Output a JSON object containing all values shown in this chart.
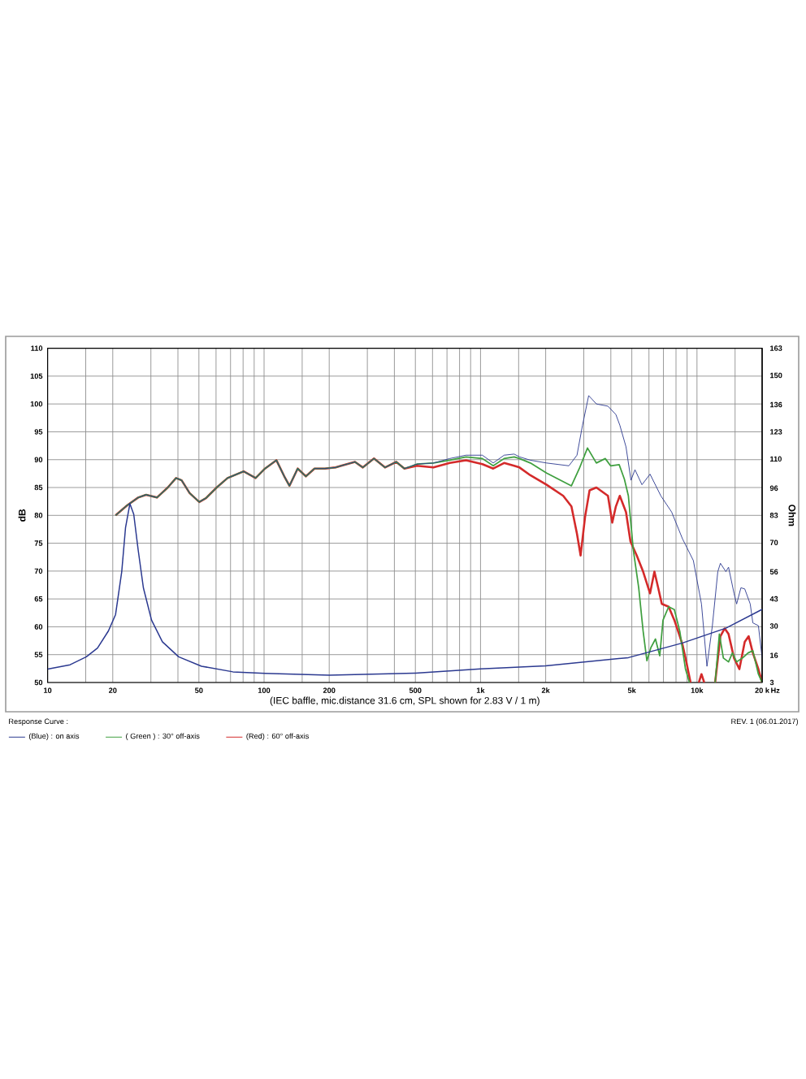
{
  "chart_data": {
    "type": "line",
    "xlabel": "(IEC baffle, mic.distance 31.6 cm, SPL shown for 2.83 V / 1 m)",
    "ylabel": "dB",
    "y2label": "Ohm",
    "legend_title": "Response Curve :",
    "annotations": [
      "REV. 1 (06.01.2017)",
      "Hz"
    ],
    "log": "x",
    "grid": true,
    "legend": "bottom",
    "xlim": [
      10,
      20000
    ],
    "ylim": [
      50,
      110
    ],
    "y2lim": [
      3,
      163
    ],
    "xticks": [
      10,
      {
        "value": 15,
        "label": null
      },
      20,
      {
        "value": 30,
        "label": null
      },
      {
        "value": 40,
        "label": null
      },
      50,
      {
        "value": 60,
        "label": null
      },
      {
        "value": 70,
        "label": null
      },
      {
        "value": 80,
        "label": null
      },
      {
        "value": 90,
        "label": null
      },
      100,
      {
        "value": 150,
        "label": null
      },
      200,
      {
        "value": 300,
        "label": null
      },
      {
        "value": 400,
        "label": null
      },
      500,
      {
        "value": 600,
        "label": null
      },
      {
        "value": 700,
        "label": null
      },
      {
        "value": 800,
        "label": null
      },
      {
        "value": 900,
        "label": null
      },
      {
        "value": 1000,
        "label": "1k"
      },
      {
        "value": 1500,
        "label": null
      },
      {
        "value": 2000,
        "label": "2k"
      },
      {
        "value": 3000,
        "label": null
      },
      {
        "value": 4000,
        "label": null
      },
      {
        "value": 5000,
        "label": "5k"
      },
      {
        "value": 6000,
        "label": null
      },
      {
        "value": 7000,
        "label": null
      },
      {
        "value": 8000,
        "label": null
      },
      {
        "value": 9000,
        "label": null
      },
      {
        "value": 10000,
        "label": "10k"
      },
      {
        "value": 15000,
        "label": null
      },
      {
        "value": 20000,
        "label": "20 k"
      }
    ],
    "yticks": [
      50,
      55,
      60,
      65,
      70,
      75,
      80,
      85,
      90,
      95,
      100,
      105,
      110
    ],
    "y2ticks": [
      3,
      16,
      30,
      43,
      56,
      70,
      83,
      96,
      110,
      123,
      136,
      150,
      163
    ],
    "series": [
      {
        "name": "(Blue) : on axis",
        "color": "#2b3990",
        "x": [
          20.6,
          23.3,
          26.2,
          28.5,
          32,
          35.9,
          39.2,
          41.6,
          45.3,
          50.2,
          53.9,
          60.4,
          67.8,
          80.5,
          91.4,
          101,
          114,
          124,
          131,
          143,
          156,
          171,
          191,
          214,
          227,
          263,
          286,
          322,
          362,
          408,
          445,
          508,
          606,
          721,
          857,
          1020,
          1145,
          1285,
          1430,
          1514,
          1700,
          2020,
          2560,
          2790,
          2960,
          3160,
          3430,
          3880,
          4220,
          4400,
          4700,
          4955,
          5170,
          5570,
          6070,
          6810,
          7640,
          8570,
          9620,
          10490,
          11120,
          11780,
          12480,
          12830,
          13600,
          13990,
          14830,
          15250,
          15960,
          16620,
          17620,
          18120,
          19220,
          20000
        ],
        "values": [
          80.0,
          81.8,
          83.2,
          83.7,
          83.2,
          85.0,
          86.7,
          86.3,
          84.0,
          82.4,
          83.1,
          85.0,
          86.7,
          87.9,
          86.7,
          88.4,
          89.9,
          87.0,
          85.3,
          88.4,
          87.0,
          88.4,
          88.4,
          88.6,
          88.9,
          89.6,
          88.6,
          90.2,
          88.6,
          89.6,
          88.4,
          89.2,
          89.4,
          90.2,
          90.8,
          90.8,
          89.4,
          90.8,
          91.0,
          90.5,
          89.9,
          89.4,
          88.9,
          90.8,
          96.2,
          101.5,
          100.0,
          99.6,
          98.1,
          96.2,
          92.3,
          86.3,
          88.2,
          85.5,
          87.4,
          83.5,
          80.6,
          75.8,
          71.9,
          64.1,
          52.9,
          60.2,
          69.9,
          71.4,
          69.9,
          70.7,
          66.0,
          64.1,
          67.0,
          66.8,
          64.1,
          60.7,
          60.2,
          54.4
        ]
      },
      {
        "name": "( Green ) : 30° off-axis",
        "color": "#3f9f3f",
        "x": [
          20.6,
          23.3,
          26.2,
          28.5,
          32,
          35.9,
          39.2,
          41.6,
          45.3,
          50.2,
          53.9,
          60.4,
          67.8,
          80.5,
          91.4,
          101,
          114,
          124,
          131,
          143,
          156,
          171,
          191,
          214,
          227,
          263,
          286,
          322,
          362,
          408,
          445,
          508,
          606,
          721,
          857,
          1020,
          1145,
          1285,
          1430,
          1514,
          1700,
          2020,
          2630,
          2860,
          3120,
          3430,
          3770,
          3990,
          4370,
          4620,
          4820,
          5080,
          5380,
          5640,
          5870,
          6130,
          6430,
          6730,
          6970,
          7400,
          7860,
          8330,
          8850,
          9230,
          10500,
          12130,
          12690,
          13240,
          13990,
          14580,
          15250,
          16230,
          17220,
          18120,
          19220,
          20000
        ],
        "values": [
          80.0,
          81.8,
          83.2,
          83.7,
          83.2,
          85.0,
          86.7,
          86.3,
          84.0,
          82.4,
          83.1,
          85.0,
          86.7,
          87.9,
          86.7,
          88.4,
          89.9,
          87.0,
          85.3,
          88.4,
          87.0,
          88.4,
          88.4,
          88.6,
          88.9,
          89.6,
          88.6,
          90.2,
          88.6,
          89.6,
          88.4,
          89.2,
          89.4,
          89.9,
          90.5,
          90.2,
          88.9,
          90.2,
          90.5,
          90.2,
          89.4,
          87.6,
          85.3,
          88.4,
          92.1,
          89.4,
          90.2,
          88.9,
          89.1,
          86.5,
          83.5,
          73.8,
          67.0,
          59.2,
          53.9,
          56.3,
          57.8,
          54.8,
          61.2,
          63.6,
          63.1,
          59.2,
          52.4,
          50.0,
          null,
          50.0,
          58.7,
          54.4,
          53.7,
          55.3,
          53.7,
          54.4,
          55.3,
          55.7,
          51.5,
          50.0
        ]
      },
      {
        "name": "(Red) : 60° off-axis",
        "color": "#d42a2a",
        "x": [
          20.6,
          23.3,
          26.2,
          28.5,
          32,
          35.9,
          39.2,
          41.6,
          45.3,
          50.2,
          53.9,
          60.4,
          67.8,
          80.5,
          91.4,
          101,
          114,
          124,
          131,
          143,
          156,
          171,
          191,
          214,
          227,
          263,
          286,
          322,
          362,
          408,
          445,
          508,
          606,
          721,
          857,
          1020,
          1145,
          1285,
          1430,
          1514,
          1700,
          2020,
          2410,
          2630,
          2790,
          2900,
          3040,
          3190,
          3430,
          3880,
          4060,
          4220,
          4400,
          4700,
          4930,
          5270,
          5640,
          6070,
          6360,
          6620,
          6880,
          7400,
          7860,
          8330,
          8570,
          8850,
          9340,
          9800,
          10200,
          10490,
          10800,
          11500,
          12130,
          12830,
          13430,
          13990,
          14830,
          15700,
          16620,
          17330,
          18120,
          19220,
          20000
        ],
        "values": [
          80.0,
          81.8,
          83.2,
          83.7,
          83.2,
          85.0,
          86.7,
          86.3,
          84.0,
          82.4,
          83.1,
          85.0,
          86.7,
          87.9,
          86.7,
          88.4,
          89.9,
          87.0,
          85.3,
          88.4,
          87.0,
          88.4,
          88.4,
          88.6,
          88.9,
          89.6,
          88.6,
          90.2,
          88.6,
          89.6,
          88.4,
          88.9,
          88.6,
          89.4,
          89.9,
          89.2,
          88.4,
          89.4,
          88.9,
          88.6,
          87.2,
          85.5,
          83.5,
          81.6,
          76.7,
          72.8,
          79.7,
          84.5,
          85.0,
          83.5,
          78.7,
          81.6,
          83.5,
          80.6,
          75.3,
          72.8,
          69.9,
          66.0,
          69.9,
          67.0,
          64.1,
          63.6,
          61.2,
          58.3,
          56.8,
          54.4,
          50.0,
          null,
          50.0,
          51.5,
          50.0,
          null,
          50.0,
          58.3,
          59.7,
          58.7,
          54.4,
          52.4,
          57.3,
          58.3,
          55.3,
          52.4,
          50.0
        ]
      },
      {
        "color": "#2b3990",
        "axis": "y2",
        "x": [
          10,
          12.7,
          15.1,
          17,
          19.1,
          20.6,
          22,
          22.9,
          24,
          25,
          26.2,
          27.7,
          30.2,
          33.9,
          40.3,
          51.4,
          71.8,
          101,
          200,
          500,
          1000,
          2000,
          4820,
          8570,
          13600,
          20000
        ],
        "values": [
          9.4,
          11.5,
          15.3,
          19.5,
          27.7,
          35.5,
          56,
          77,
          88.6,
          83.5,
          66.5,
          48.3,
          32.9,
          22.5,
          15.3,
          10.8,
          8.1,
          7.4,
          6.5,
          7.5,
          9.5,
          11,
          14.9,
          21.9,
          29,
          38
        ]
      }
    ]
  }
}
